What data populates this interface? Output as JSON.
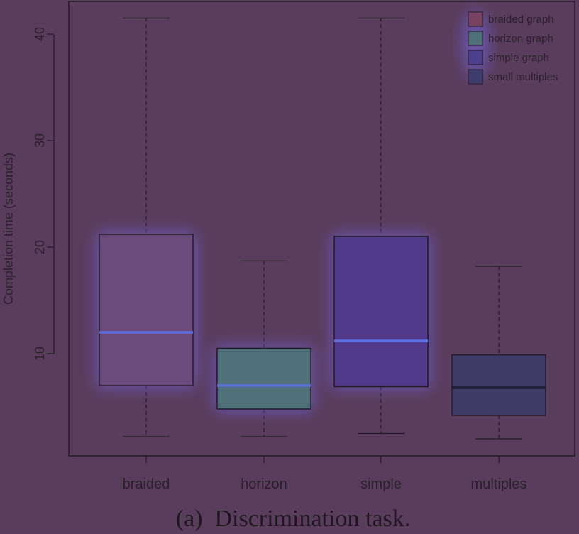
{
  "chart_data": {
    "type": "box",
    "caption": "(a)  Discrimination task.",
    "ylabel": "Completion time (seconds)",
    "xlabel": "",
    "ylim": [
      0,
      43
    ],
    "yticks": [
      10,
      20,
      30,
      40
    ],
    "grid": false,
    "legend_placement": "top-right",
    "categories": [
      "braided",
      "horizon",
      "simple",
      "multiples"
    ],
    "legend": [
      "braided graph",
      "horizon graph",
      "simple graph",
      "small multiples"
    ],
    "series": [
      {
        "min": 2.2,
        "q1": 7.0,
        "median": 12.0,
        "q3": 21.2,
        "max": 41.5,
        "color": "#6b4a7e"
      },
      {
        "min": 2.2,
        "q1": 4.8,
        "median": 7.0,
        "q3": 10.5,
        "max": 18.7,
        "color": "#4f6f79"
      },
      {
        "min": 2.5,
        "q1": 6.9,
        "median": 11.2,
        "q3": 21.0,
        "max": 41.5,
        "color": "#523b8a"
      },
      {
        "min": 2.0,
        "q1": 4.2,
        "median": 6.8,
        "q3": 9.9,
        "max": 18.2,
        "color": "#3e3a66"
      }
    ],
    "legend_colors": [
      "#7a4262",
      "#4f6f79",
      "#4d3f8e",
      "#3f3c6e"
    ]
  }
}
